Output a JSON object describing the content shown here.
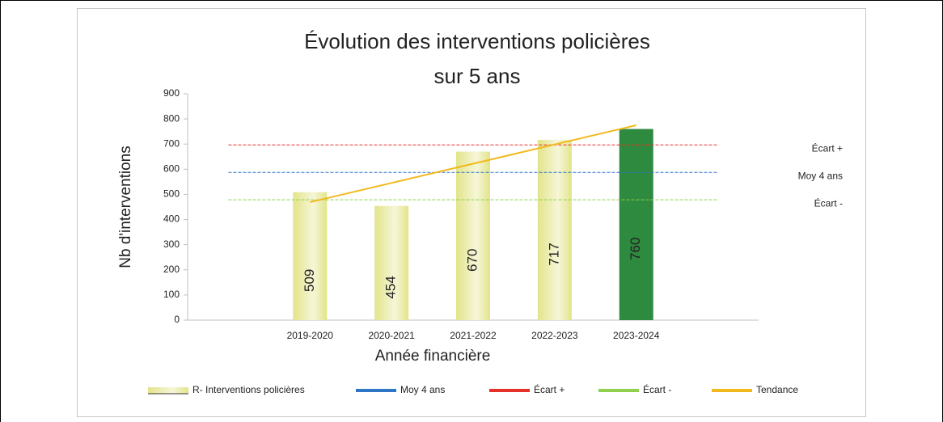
{
  "chart_data": {
    "type": "bar",
    "title": [
      "Évolution des interventions policières",
      "sur 5 ans"
    ],
    "y_label": "Nb d'interventions",
    "x_label": "Année financière",
    "categories": [
      null,
      "2019-2020",
      "2020-2021",
      "2021-2022",
      "2022-2023",
      "2023-2024",
      null
    ],
    "series": [
      {
        "name": "R- Interventions policières",
        "kind": "bar",
        "color": "#e2e48a",
        "highlight_color": "#2e8a3e",
        "highlight_index": 5,
        "values": [
          null,
          509,
          454,
          670,
          717,
          760,
          null
        ]
      },
      {
        "name": "Moy 4 ans",
        "kind": "line",
        "dashed": true,
        "end_label": true,
        "color": "#2e75c6",
        "values": [
          587.5,
          587.5,
          587.5,
          587.5,
          587.5,
          587.5,
          587.5
        ]
      },
      {
        "name": "Écart +",
        "kind": "line",
        "dashed": true,
        "end_label": true,
        "color": "#e8302a",
        "values": [
          696.5,
          696.5,
          696.5,
          696.5,
          696.5,
          696.5,
          696.5
        ]
      },
      {
        "name": "Écart -",
        "kind": "line",
        "dashed": true,
        "end_label": true,
        "color": "#8fd14f",
        "values": [
          478.5,
          478.5,
          478.5,
          478.5,
          478.5,
          478.5,
          478.5
        ]
      },
      {
        "name": "Tendance",
        "kind": "line",
        "dashed": false,
        "end_label": false,
        "color": "#f2b91e",
        "values": [
          null,
          469,
          545.5,
          622,
          698.5,
          775,
          null
        ]
      }
    ],
    "ylim": [
      0,
      900
    ],
    "yticks": [
      0,
      100,
      200,
      300,
      400,
      500,
      600,
      700,
      800,
      900
    ],
    "grid": false,
    "legend": "bottom"
  }
}
